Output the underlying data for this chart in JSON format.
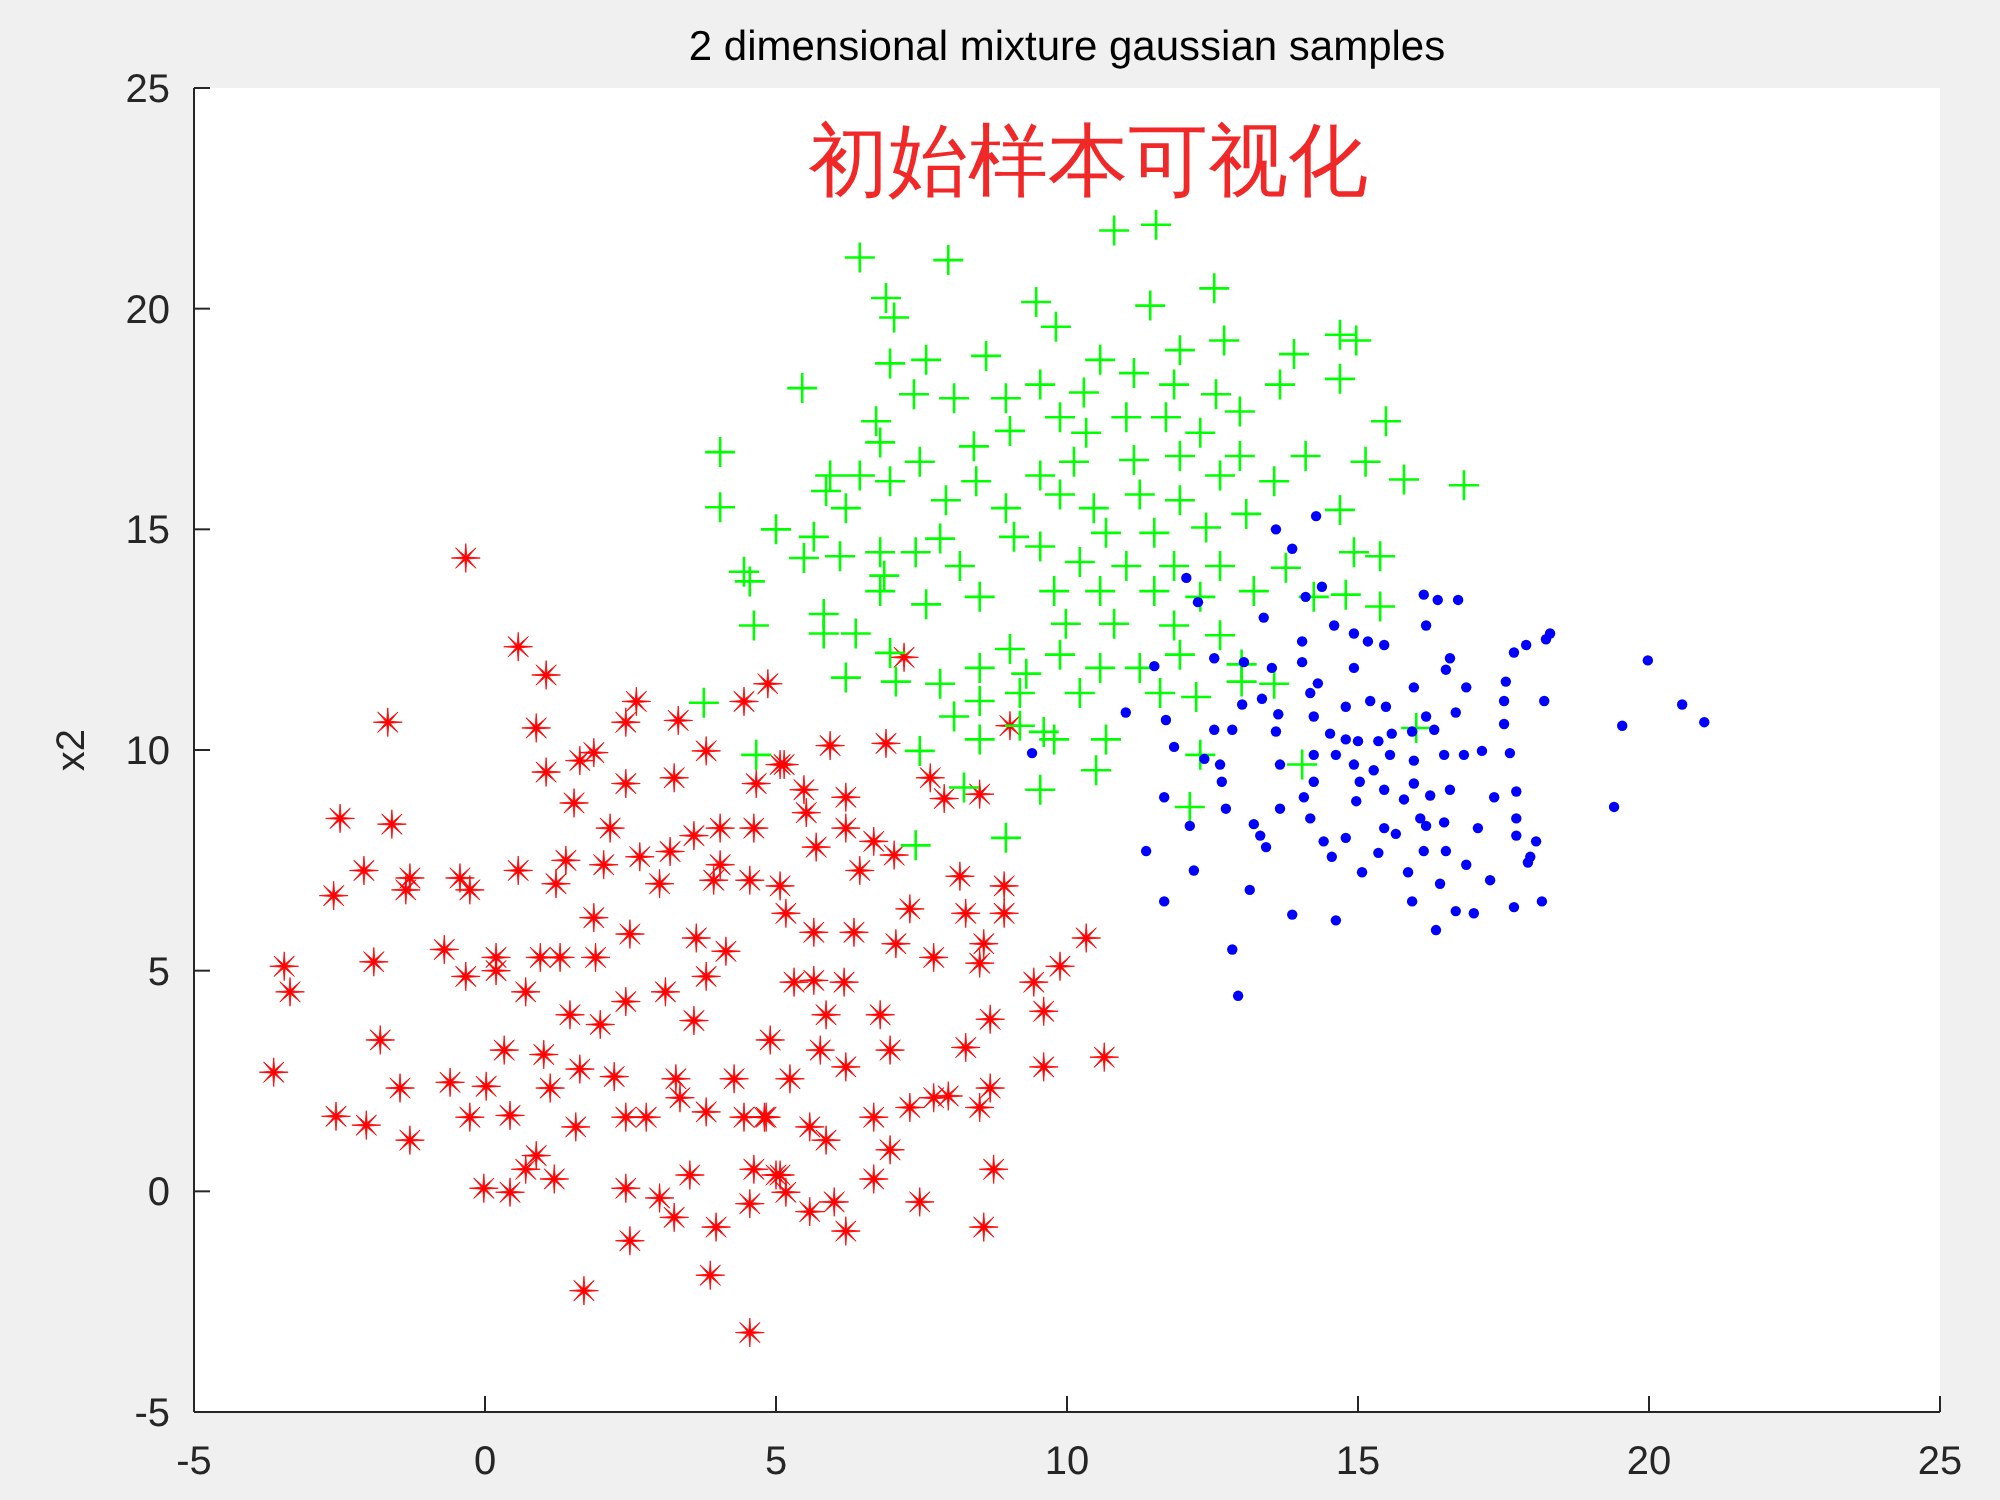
{
  "chart_data": {
    "type": "scatter",
    "title": "2 dimensional mixture gaussian samples",
    "ylabel": "x2",
    "annotations": [
      "初始样本可视化"
    ],
    "xlim": [
      -5,
      25
    ],
    "ylim": [
      -5,
      25
    ],
    "xticks": [
      -5,
      0,
      5,
      10,
      15,
      20,
      25
    ],
    "yticks": [
      -5,
      0,
      5,
      10,
      15,
      20,
      25
    ],
    "series": [
      {
        "color": "#ff0000",
        "marker": "star",
        "x": [
          -0.33,
          0.57,
          1.05,
          -1.67,
          0.88,
          2.6,
          2.42,
          3.32,
          4.45,
          4.86,
          1.87,
          1.63,
          1.05,
          3.8,
          3.25,
          2.42,
          1.53,
          2.15,
          5.07,
          4.66,
          -2.49,
          -1.6,
          -2.08,
          -1.29,
          -2.6,
          -1.36,
          -0.43,
          -0.26,
          0.57,
          1.22,
          1.39,
          2.04,
          2.66,
          3.18,
          3.0,
          4.04,
          3.93,
          4.55,
          3.59,
          4.04,
          4.62,
          -3.45,
          -3.35,
          -1.91,
          -0.7,
          -0.33,
          0.19,
          0.19,
          0.7,
          0.95,
          1.29,
          1.87,
          1.9,
          2.49,
          1.46,
          2.42,
          1.98,
          3.1,
          3.63,
          4.14,
          3.8,
          3.59,
          -3.63,
          -1.8,
          -2.56,
          -2.04,
          -1.46,
          -1.29,
          -0.6,
          -0.26,
          0.02,
          0.33,
          0.43,
          1.01,
          1.12,
          1.56,
          1.63,
          2.22,
          2.42,
          2.77,
          3.28,
          3.35,
          3.8,
          4.45,
          4.83,
          4.9,
          4.28,
          0.88,
          0.7,
          1.19,
          -0.02,
          0.43,
          2.42,
          3.0,
          3.25,
          3.52,
          3.97,
          4.55,
          4.62,
          2.49,
          3.87,
          1.7,
          4.55,
          5.07,
          5.17,
          5.93,
          6.89,
          7.2,
          9.02,
          7.65,
          8.5,
          7.89,
          5.14,
          5.48,
          6.2,
          5.52,
          6.2,
          5.69,
          6.68,
          7.03,
          6.44,
          8.16,
          8.92,
          8.92,
          8.26,
          7.3,
          5.07,
          5.17,
          5.65,
          6.34,
          7.06,
          7.71,
          8.57,
          8.5,
          10.33,
          9.88,
          9.43,
          9.6,
          8.68,
          10.64,
          9.6,
          8.26,
          8.68,
          7.71,
          7.3,
          7.96,
          8.5,
          8.74,
          7.47,
          8.57,
          6.96,
          6.68,
          6.2,
          5.58,
          6.0,
          5.86,
          5.58,
          6.68,
          4.8,
          5.0,
          5.24,
          5.76,
          6.2,
          6.96,
          6.79,
          5.86,
          5.31,
          5.65,
          6.17
        ],
        "values": [
          14.35,
          12.34,
          11.7,
          10.63,
          10.5,
          11.1,
          10.63,
          10.67,
          11.1,
          11.5,
          9.94,
          9.76,
          9.5,
          9.98,
          9.37,
          9.24,
          8.8,
          8.23,
          9.67,
          9.24,
          8.45,
          8.32,
          7.27,
          7.1,
          6.7,
          6.83,
          7.1,
          6.83,
          7.27,
          6.97,
          7.5,
          7.4,
          7.58,
          7.7,
          6.97,
          7.4,
          7.05,
          7.05,
          8.06,
          8.23,
          8.23,
          5.1,
          4.52,
          5.2,
          5.48,
          4.87,
          5.3,
          5.0,
          4.52,
          5.3,
          5.3,
          6.2,
          5.3,
          5.83,
          4.0,
          4.3,
          3.78,
          4.52,
          5.74,
          5.44,
          4.87,
          3.87,
          2.7,
          3.43,
          1.7,
          1.5,
          2.34,
          1.16,
          2.47,
          1.68,
          2.38,
          3.2,
          1.72,
          3.1,
          2.34,
          1.46,
          2.77,
          2.6,
          1.68,
          1.68,
          2.55,
          2.12,
          1.8,
          1.68,
          1.68,
          3.43,
          2.55,
          0.81,
          0.5,
          0.28,
          0.07,
          -0.02,
          0.07,
          -0.15,
          -0.59,
          0.37,
          -0.81,
          -0.28,
          0.5,
          -1.12,
          -1.9,
          -2.25,
          -3.2,
          0.37,
          -0.02,
          10.1,
          10.15,
          12.1,
          10.55,
          9.37,
          9.0,
          8.9,
          9.67,
          9.1,
          8.93,
          8.58,
          8.23,
          7.8,
          7.93,
          7.62,
          7.27,
          7.14,
          6.92,
          6.3,
          6.3,
          6.4,
          6.92,
          6.3,
          5.87,
          5.87,
          5.61,
          5.3,
          5.61,
          5.17,
          5.74,
          5.1,
          4.74,
          4.08,
          3.9,
          3.04,
          2.82,
          3.26,
          2.34,
          2.12,
          1.9,
          2.16,
          1.9,
          0.5,
          -0.24,
          -0.81,
          0.94,
          0.28,
          -0.9,
          -0.46,
          -0.24,
          1.16,
          1.46,
          1.68,
          1.68,
          0.37,
          2.55,
          3.2,
          2.82,
          3.2,
          4.0,
          4.0,
          4.74,
          4.78,
          4.74
        ]
      },
      {
        "color": "#00ff00",
        "marker": "cross",
        "x": [
          6.44,
          7.96,
          6.89,
          7.03,
          9.47,
          5.45,
          4.04,
          4.04,
          6.96,
          7.58,
          8.61,
          7.37,
          8.06,
          8.95,
          6.72,
          6.79,
          7.47,
          8.4,
          9.02,
          5.93,
          6.44,
          6.96,
          6.2,
          5.86,
          7.92,
          8.44,
          8.95,
          5.0,
          5.65,
          4.45,
          4.55,
          5.48,
          6.1,
          6.79,
          7.4,
          7.82,
          9.09,
          8.16,
          6.86,
          6.79,
          7.58,
          8.5,
          4.62,
          5.82,
          5.82,
          6.37,
          6.2,
          6.96,
          7.06,
          7.82,
          8.5,
          9.02,
          9.3,
          8.5,
          8.06,
          8.5,
          9.19,
          9.78,
          9.54,
          7.47,
          8.23,
          3.76,
          4.66,
          7.4,
          8.95,
          10.81,
          11.53,
          12.53,
          11.43,
          9.81,
          14.69,
          14.97,
          14.69,
          12.7,
          11.94,
          13.9,
          13.66,
          15.48,
          14.1,
          15.13,
          15.79,
          16.82,
          14.69,
          14.93,
          15.38,
          13.76,
          14.24,
          14.79,
          15.38,
          13.0,
          13.56,
          12.22,
          10.57,
          10.67,
          10.5,
          9.6,
          12.29,
          12.11,
          14.04,
          16.0,
          12.56,
          12.97,
          11.84,
          11.15,
          10.57,
          10.29,
          9.54,
          9.88,
          10.33,
          11.02,
          11.7,
          12.29,
          12.97,
          11.94,
          11.15,
          10.12,
          9.54,
          9.88,
          10.46,
          11.25,
          11.94,
          12.63,
          13.56,
          13.08,
          12.39,
          11.5,
          10.67,
          9.54,
          10.22,
          11.02,
          11.84,
          12.63,
          13.21,
          12.29,
          11.5,
          10.57,
          9.78,
          9.98,
          10.81,
          11.84,
          12.63,
          9.88,
          11.25,
          11.94,
          9.19,
          10.22,
          11.6,
          13.0
        ],
        "values": [
          21.16,
          21.1,
          20.24,
          19.8,
          20.15,
          18.2,
          16.75,
          15.5,
          18.76,
          18.84,
          18.93,
          18.06,
          17.97,
          17.97,
          17.45,
          16.97,
          16.53,
          16.88,
          17.23,
          16.22,
          16.22,
          16.09,
          15.48,
          15.87,
          15.66,
          16.09,
          15.48,
          15.0,
          14.83,
          14.04,
          13.82,
          14.35,
          14.39,
          14.48,
          14.48,
          14.79,
          14.83,
          14.17,
          13.95,
          13.6,
          13.3,
          13.47,
          12.82,
          13.08,
          12.64,
          12.64,
          11.64,
          12.2,
          11.55,
          11.5,
          11.86,
          12.29,
          11.73,
          11.11,
          10.76,
          10.24,
          10.55,
          10.24,
          9.1,
          9.98,
          9.15,
          11.07,
          9.89,
          7.84,
          8.01,
          21.77,
          21.9,
          20.46,
          20.07,
          19.59,
          19.41,
          19.28,
          18.41,
          19.28,
          19.06,
          18.97,
          18.28,
          17.45,
          16.66,
          16.53,
          16.13,
          16.0,
          15.44,
          14.48,
          14.39,
          14.13,
          13.47,
          13.52,
          13.25,
          11.94,
          11.5,
          11.2,
          11.86,
          10.24,
          9.54,
          10.41,
          9.89,
          8.71,
          9.67,
          10.5,
          18.06,
          17.67,
          18.28,
          18.54,
          18.84,
          18.1,
          18.28,
          17.54,
          17.19,
          17.54,
          17.54,
          17.19,
          16.66,
          16.66,
          16.57,
          16.53,
          16.22,
          15.79,
          15.48,
          15.79,
          15.66,
          16.22,
          16.09,
          15.35,
          15.04,
          14.92,
          14.92,
          14.61,
          14.26,
          14.17,
          14.17,
          14.17,
          13.6,
          13.47,
          13.6,
          13.6,
          13.6,
          12.86,
          12.86,
          12.82,
          12.6,
          12.16,
          11.86,
          12.16,
          11.29,
          11.29,
          11.29,
          11.55
        ]
      },
      {
        "color": "#0000ff",
        "marker": "circle",
        "x": [
          14.28,
          13.59,
          13.87,
          12.05,
          12.25,
          14.1,
          14.38,
          16.13,
          16.37,
          16.72,
          16.17,
          13.38,
          14.59,
          14.93,
          15.17,
          15.45,
          14.04,
          18.3,
          18.23,
          17.89,
          17.68,
          19.98,
          16.58,
          12.53,
          13.04,
          13.52,
          14.04,
          14.93,
          16.51,
          16.86,
          17.54,
          20.57,
          20.95,
          19.54,
          18.2,
          17.51,
          14.31,
          14.18,
          15.96,
          13.01,
          13.35,
          11.01,
          11.7,
          13.63,
          14.24,
          14.79,
          15.21,
          15.48,
          16.17,
          16.68,
          17.51,
          12.53,
          12.84,
          13.59,
          14.52,
          14.79,
          15.0,
          15.35,
          15.58,
          15.93,
          16.31,
          11.84,
          12.36,
          12.63,
          14.24,
          14.62,
          14.93,
          15.27,
          15.55,
          15.96,
          16.48,
          16.82,
          17.13,
          17.61,
          13.66,
          12.66,
          11.67,
          14.24,
          15.03,
          15.45,
          15.96,
          16.24,
          16.58,
          17.34,
          17.72,
          19.4,
          14.07,
          14.97,
          15.79,
          12.73,
          13.66,
          14.18,
          12.11,
          13.21,
          15.45,
          16.07,
          16.48,
          17.06,
          17.72,
          13.32,
          15.65,
          16.17,
          14.41,
          14.79,
          18.06,
          17.72,
          11.36,
          13.42,
          16.13,
          16.51,
          15.35,
          17.96,
          14.55,
          16.86,
          17.92,
          12.18,
          15.07,
          15.86,
          17.27,
          16.41,
          13.14,
          11.67,
          15.93,
          16.68,
          16.99,
          17.68,
          18.16,
          13.87,
          14.62,
          16.34,
          12.84,
          12.94,
          9.4,
          11.5
        ],
        "values": [
          15.3,
          15.0,
          14.56,
          13.9,
          13.35,
          13.47,
          13.7,
          13.52,
          13.4,
          13.4,
          12.82,
          13.0,
          12.82,
          12.64,
          12.46,
          12.38,
          12.46,
          12.64,
          12.51,
          12.38,
          12.21,
          12.03,
          12.08,
          12.08,
          11.99,
          11.86,
          11.99,
          11.86,
          11.82,
          11.42,
          11.55,
          11.03,
          10.63,
          10.55,
          11.11,
          11.11,
          11.51,
          11.29,
          11.42,
          11.03,
          11.16,
          10.85,
          10.68,
          10.81,
          10.76,
          10.98,
          11.11,
          10.98,
          10.76,
          10.85,
          10.59,
          10.46,
          10.46,
          10.42,
          10.37,
          10.24,
          10.2,
          10.2,
          10.37,
          10.42,
          10.46,
          10.07,
          9.8,
          9.67,
          9.89,
          9.89,
          9.67,
          9.54,
          9.89,
          9.76,
          9.89,
          9.89,
          9.98,
          9.93,
          9.67,
          9.28,
          8.93,
          9.28,
          9.28,
          9.1,
          9.24,
          8.97,
          9.1,
          8.93,
          9.06,
          8.71,
          8.93,
          8.84,
          8.88,
          8.67,
          8.67,
          8.45,
          8.28,
          8.32,
          8.23,
          8.45,
          8.36,
          8.23,
          8.45,
          8.06,
          8.1,
          8.28,
          7.93,
          8.01,
          7.93,
          8.06,
          7.71,
          7.8,
          7.71,
          7.71,
          7.67,
          7.58,
          7.58,
          7.4,
          7.45,
          7.27,
          7.23,
          7.23,
          7.05,
          6.97,
          6.83,
          6.57,
          6.57,
          6.35,
          6.3,
          6.44,
          6.57,
          6.27,
          6.14,
          5.92,
          5.48,
          4.43,
          9.93,
          11.9
        ]
      }
    ]
  }
}
